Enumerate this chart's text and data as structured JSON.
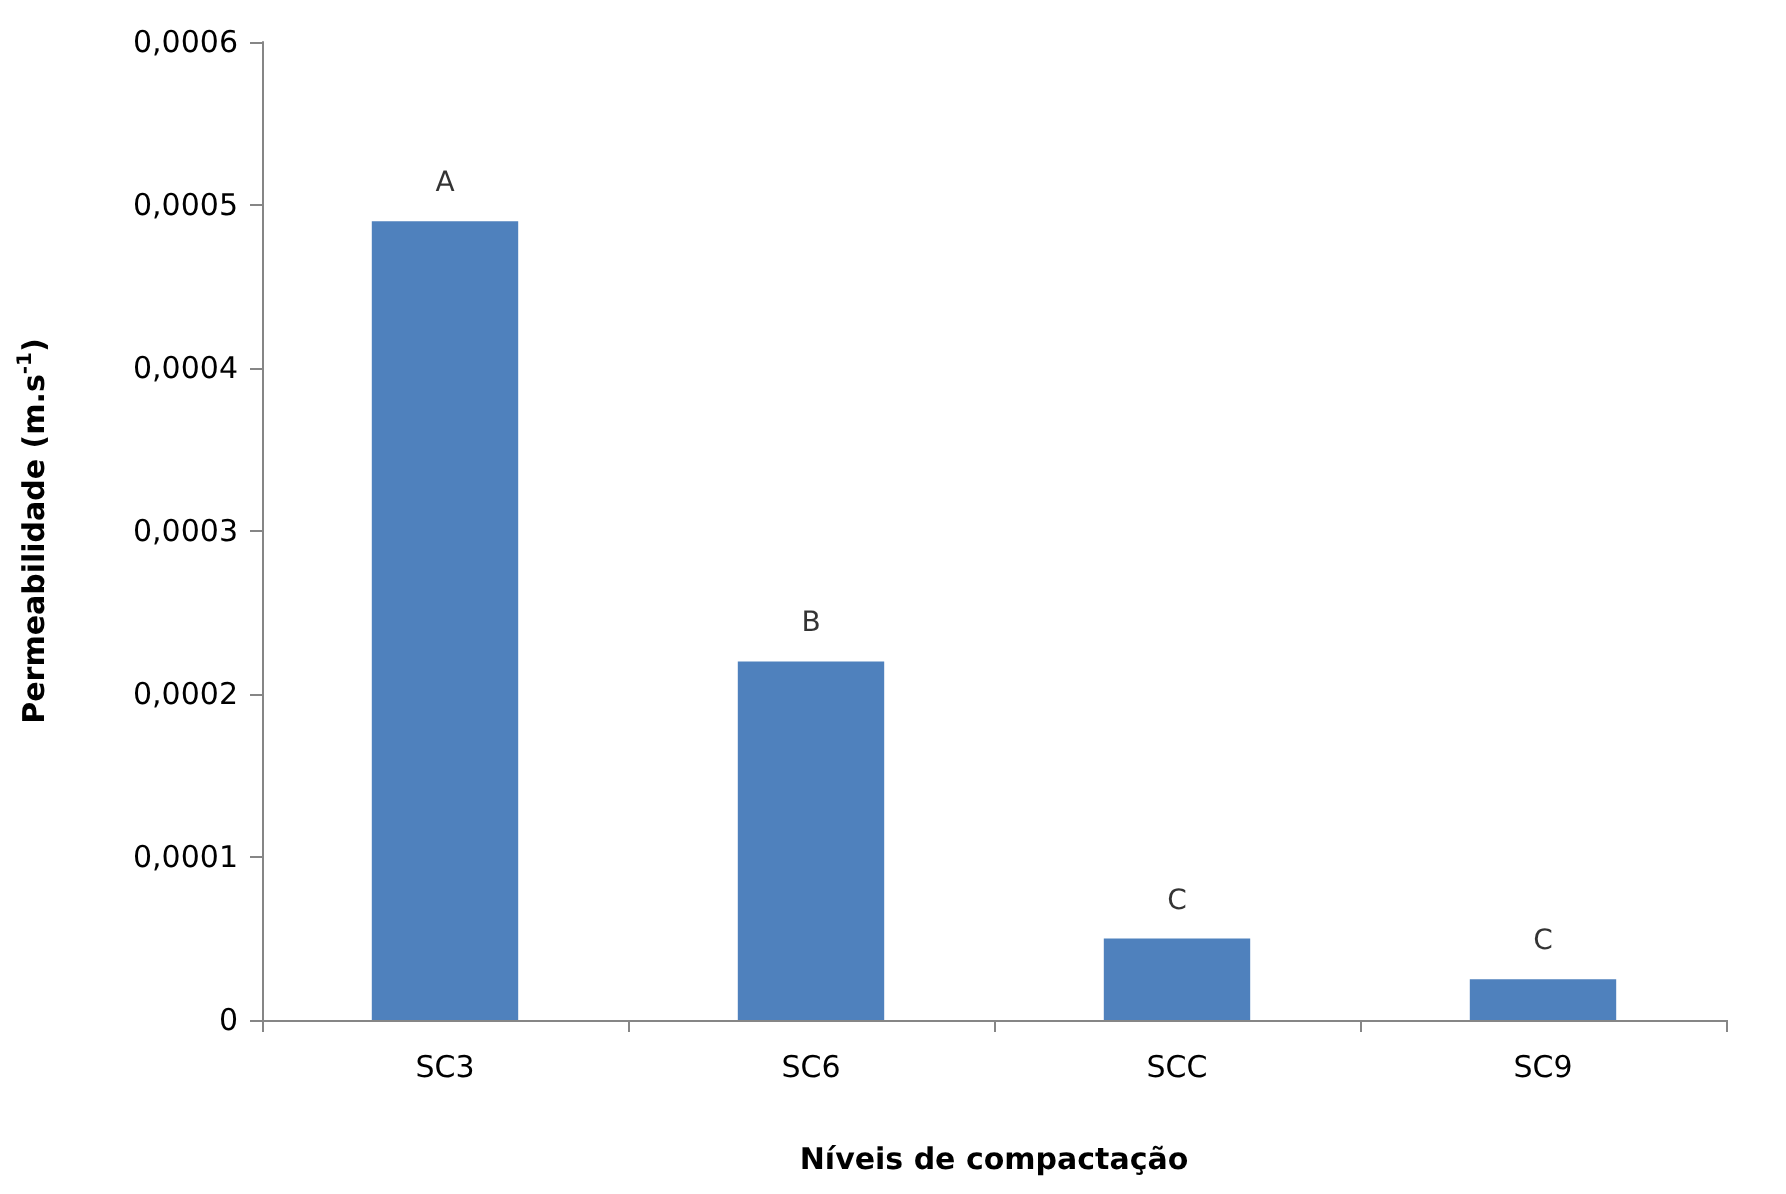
{
  "chart_data": {
    "type": "bar",
    "xlabel": "Níveis de compactação",
    "ylabel": "Permeabilidade (m.s$^{-1}$)",
    "categories": [
      "SC3",
      "SC6",
      "SCC",
      "SC9"
    ],
    "values": [
      0.00049,
      0.00022,
      5e-05,
      2.5e-05
    ],
    "color": "#4f81bd",
    "ylim": [
      0,
      0.0006
    ],
    "yticks": [
      0,
      {
        "value": 0.0001,
        "label": "0,0001"
      },
      {
        "value": 0.0002,
        "label": "0,0002"
      },
      {
        "value": 0.0003,
        "label": "0,0003"
      },
      {
        "value": 0.0004,
        "label": "0,0004"
      },
      {
        "value": 0.0005,
        "label": "0,0005"
      },
      {
        "value": 0.0006,
        "label": "0,0006"
      }
    ],
    "annotations": [
      {
        "text": "A",
        "x": "SC3",
        "y": 0.00049
      },
      {
        "text": "B",
        "x": "SC6",
        "y": 0.00022
      },
      {
        "text": "C",
        "x": "SCC",
        "y": 5e-05
      },
      {
        "text": "C",
        "x": "SC9",
        "y": 2.5e-05
      }
    ]
  }
}
